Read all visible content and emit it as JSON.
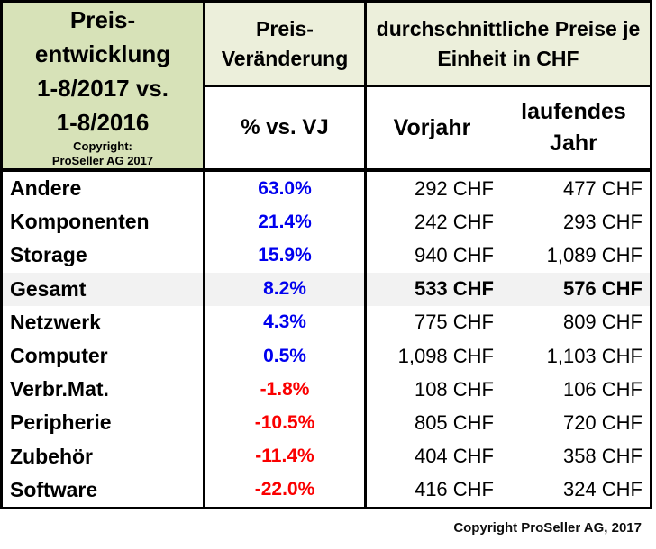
{
  "colors": {
    "header_green_dark": "#D7E2B8",
    "header_green_light": "#ECEFDB",
    "highlight_gray": "#F2F2F2",
    "positive_blue": "#0000EE",
    "negative_red": "#FA0000",
    "border_black": "#000000"
  },
  "table": {
    "title": {
      "lines": [
        "Preis-",
        "entwicklung",
        "1-8/2017 vs.",
        "1-8/2016"
      ],
      "copyright_lines": [
        "Copyright:",
        "ProSeller AG 2017"
      ]
    },
    "change_header": {
      "lines": [
        "Preis-",
        "Veränderung"
      ],
      "sub": "% vs. VJ"
    },
    "price_header": {
      "lines": [
        "durchschnittliche Preise je",
        "Einheit in CHF"
      ],
      "col_prev": "Vorjahr",
      "col_current": "laufendes Jahr"
    },
    "rows": [
      {
        "label": "Andere",
        "change": "63.0%",
        "direction": "up",
        "prev": "292 CHF",
        "current": "477 CHF",
        "highlight": false
      },
      {
        "label": "Komponenten",
        "change": "21.4%",
        "direction": "up",
        "prev": "242 CHF",
        "current": "293 CHF",
        "highlight": false
      },
      {
        "label": "Storage",
        "change": "15.9%",
        "direction": "up",
        "prev": "940 CHF",
        "current": "1,089 CHF",
        "highlight": false
      },
      {
        "label": "Gesamt",
        "change": "8.2%",
        "direction": "up",
        "prev": "533 CHF",
        "current": "576 CHF",
        "highlight": true
      },
      {
        "label": "Netzwerk",
        "change": "4.3%",
        "direction": "up",
        "prev": "775 CHF",
        "current": "809 CHF",
        "highlight": false
      },
      {
        "label": "Computer",
        "change": "0.5%",
        "direction": "up",
        "prev": "1,098 CHF",
        "current": "1,103 CHF",
        "highlight": false
      },
      {
        "label": "Verbr.Mat.",
        "change": "-1.8%",
        "direction": "down",
        "prev": "108 CHF",
        "current": "106 CHF",
        "highlight": false
      },
      {
        "label": "Peripherie",
        "change": "-10.5%",
        "direction": "down",
        "prev": "805 CHF",
        "current": "720 CHF",
        "highlight": false
      },
      {
        "label": "Zubehör",
        "change": "-11.4%",
        "direction": "down",
        "prev": "404 CHF",
        "current": "358 CHF",
        "highlight": false
      },
      {
        "label": "Software",
        "change": "-22.0%",
        "direction": "down",
        "prev": "416 CHF",
        "current": "324 CHF",
        "highlight": false
      }
    ]
  },
  "footer": {
    "copyright": "Copyright ProSeller AG, 2017"
  },
  "chart_data": {
    "type": "table",
    "title": "Preisentwicklung 1-8/2017 vs. 1-8/2016",
    "columns": [
      "",
      "% vs. VJ",
      "Vorjahr",
      "laufendes Jahr"
    ],
    "units": "CHF",
    "rows": [
      [
        "Andere",
        63.0,
        292,
        477
      ],
      [
        "Komponenten",
        21.4,
        242,
        293
      ],
      [
        "Storage",
        15.9,
        940,
        1089
      ],
      [
        "Gesamt",
        8.2,
        533,
        576
      ],
      [
        "Netzwerk",
        4.3,
        775,
        809
      ],
      [
        "Computer",
        0.5,
        1098,
        1103
      ],
      [
        "Verbr.Mat.",
        -1.8,
        108,
        106
      ],
      [
        "Peripherie",
        -10.5,
        805,
        720
      ],
      [
        "Zubehör",
        -11.4,
        404,
        358
      ],
      [
        "Software",
        -22.0,
        416,
        324
      ]
    ]
  }
}
